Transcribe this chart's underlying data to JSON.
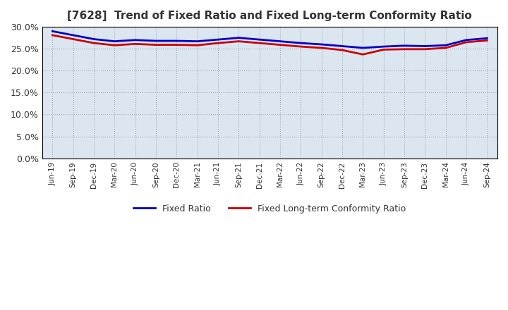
{
  "title": "[7628]  Trend of Fixed Ratio and Fixed Long-term Conformity Ratio",
  "x_labels": [
    "Jun-19",
    "Sep-19",
    "Dec-19",
    "Mar-20",
    "Jun-20",
    "Sep-20",
    "Dec-20",
    "Mar-21",
    "Jun-21",
    "Sep-21",
    "Dec-21",
    "Mar-22",
    "Jun-22",
    "Sep-22",
    "Dec-22",
    "Mar-23",
    "Jun-23",
    "Sep-23",
    "Dec-23",
    "Mar-24",
    "Jun-24",
    "Sep-24"
  ],
  "fixed_ratio": [
    0.29,
    0.281,
    0.272,
    0.267,
    0.27,
    0.268,
    0.268,
    0.267,
    0.271,
    0.275,
    0.271,
    0.267,
    0.263,
    0.26,
    0.256,
    0.252,
    0.255,
    0.257,
    0.256,
    0.258,
    0.27,
    0.274
  ],
  "fixed_lt_ratio": [
    0.281,
    0.272,
    0.263,
    0.258,
    0.261,
    0.259,
    0.259,
    0.258,
    0.263,
    0.267,
    0.263,
    0.259,
    0.255,
    0.252,
    0.247,
    0.237,
    0.248,
    0.249,
    0.249,
    0.252,
    0.265,
    0.269
  ],
  "fixed_ratio_color": "#0000cc",
  "fixed_lt_ratio_color": "#cc0000",
  "ylim": [
    0.0,
    0.3
  ],
  "yticks": [
    0.0,
    0.05,
    0.1,
    0.15,
    0.2,
    0.25,
    0.3
  ],
  "plot_bg_color": "#dce6f1",
  "background_color": "#ffffff",
  "grid_color": "#aaaaaa",
  "border_color": "#000000",
  "title_fontsize": 11,
  "legend_labels": [
    "Fixed Ratio",
    "Fixed Long-term Conformity Ratio"
  ]
}
